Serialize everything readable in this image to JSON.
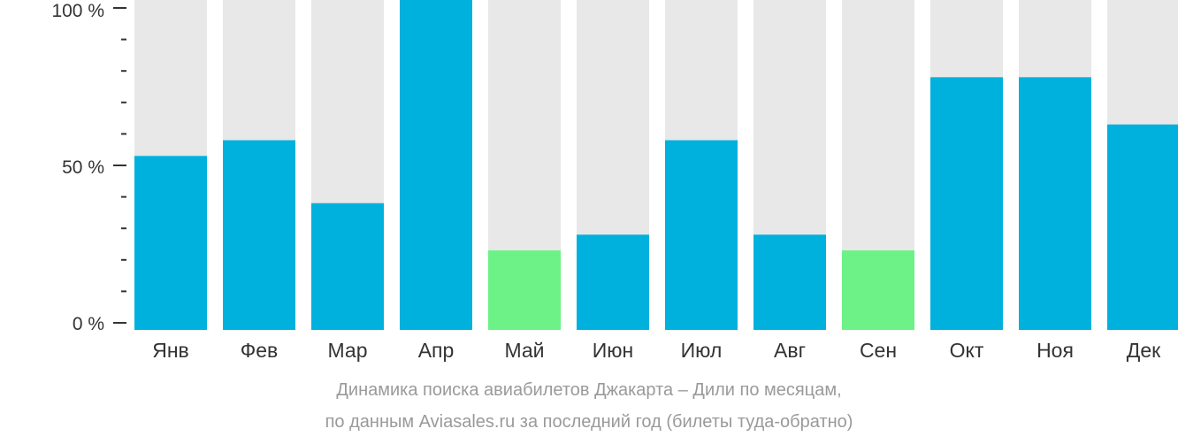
{
  "colors": {
    "background_bar": "#e8e8e9",
    "bar_default": "#00b1dd",
    "bar_low": "#6cf287",
    "axis": "#333333",
    "caption": "#9a9a9a"
  },
  "chart_data": {
    "type": "bar",
    "categories": [
      "Янв",
      "Фев",
      "Мар",
      "Апр",
      "Май",
      "Июн",
      "Июл",
      "Авг",
      "Сен",
      "Окт",
      "Ноя",
      "Дек"
    ],
    "values": [
      53,
      58,
      38,
      100,
      23,
      28,
      58,
      28,
      23,
      78,
      78,
      63
    ],
    "highlight_low": [
      false,
      false,
      false,
      false,
      true,
      false,
      false,
      false,
      true,
      false,
      false,
      false
    ],
    "ylim": [
      0,
      100
    ],
    "yticks": [
      "0 %",
      "50 %",
      "100 %"
    ],
    "grid": false,
    "legend": "none"
  },
  "caption": {
    "line1": "Динамика поиска авиабилетов Джакарта – Дили по месяцам,",
    "line2": "по данным Aviasales.ru за последний год (билеты туда-обратно)"
  }
}
